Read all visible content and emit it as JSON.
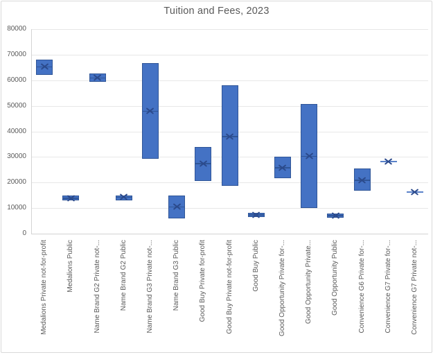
{
  "chart_data": {
    "type": "box",
    "title": "Tuition and Fees, 2023",
    "xlabel": "",
    "ylabel": "",
    "ylim": [
      0,
      80000
    ],
    "yticks": [
      0,
      10000,
      20000,
      30000,
      40000,
      50000,
      60000,
      70000,
      80000
    ],
    "grid": "horizontal",
    "legend": "none",
    "marker_meaning": "x = mean tuition; bar = low-high tuition range",
    "points": [
      {
        "label": "Medalions Private not-for-profit",
        "low": 62000,
        "high": 68200,
        "mean": 65300
      },
      {
        "label": "Medalions Public",
        "low": 13000,
        "high": 14800,
        "mean": 13900
      },
      {
        "label": "Name Brand G2 Private not-...",
        "low": 59400,
        "high": 62700,
        "mean": 61000
      },
      {
        "label": "Name Brand G2 Public",
        "low": 13000,
        "high": 15000,
        "mean": 14300
      },
      {
        "label": "Name Brand G3 Private not-...",
        "low": 29200,
        "high": 66700,
        "mean": 48000
      },
      {
        "label": "Name Brand G3 Public",
        "low": 6000,
        "high": 14900,
        "mean": 10500
      },
      {
        "label": "Good Buy Private for-profit",
        "low": 20600,
        "high": 34000,
        "mean": 27400
      },
      {
        "label": "Good Buy Private not-for-profit",
        "low": 18600,
        "high": 58000,
        "mean": 38000
      },
      {
        "label": "Good Buy Public",
        "low": 6400,
        "high": 8200,
        "mean": 7400
      },
      {
        "label": "Good Opportunity Private for-...",
        "low": 21800,
        "high": 30000,
        "mean": 25800
      },
      {
        "label": "Good Opportunity Private...",
        "low": 10000,
        "high": 50700,
        "mean": 30300
      },
      {
        "label": "Good Opportunity Public",
        "low": 6100,
        "high": 7900,
        "mean": 7100
      },
      {
        "label": "Convenience G6 Private for-...",
        "low": 16800,
        "high": 25400,
        "mean": 21000
      },
      {
        "label": "Convenience G7 Private for-...",
        "low": 28100,
        "high": 28100,
        "mean": 28100
      },
      {
        "label": "Convenience G7 Private not-...",
        "low": 16300,
        "high": 16300,
        "mean": 16300
      }
    ],
    "colors": {
      "box_fill": "#4472c4",
      "box_border": "#2f5597",
      "median_line": "#2f5597",
      "mean_marker": "#2b4a8c",
      "range_line": "#5b82c9",
      "gridline": "#e7e7e7",
      "axis_line": "#d3d3d3",
      "text": "#595959"
    }
  }
}
